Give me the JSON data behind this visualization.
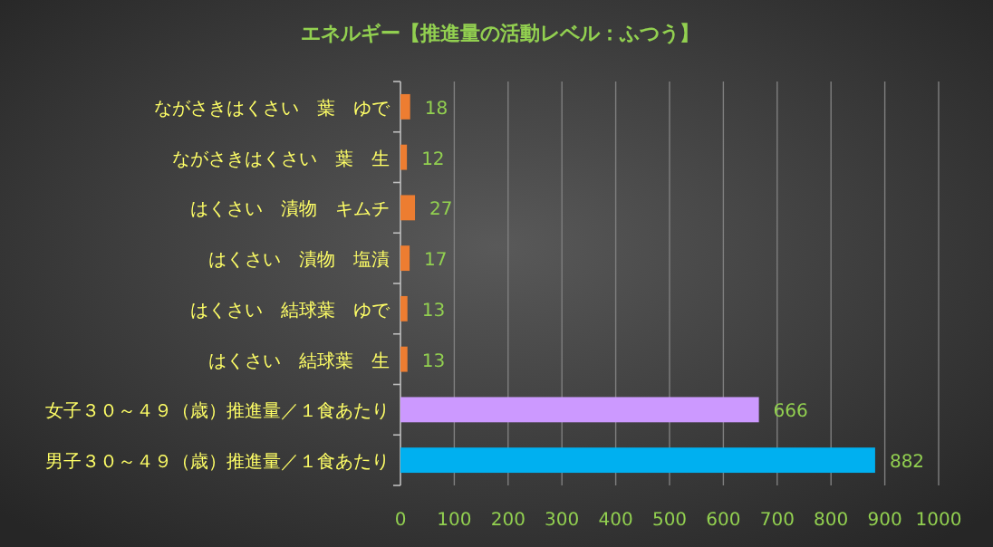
{
  "chart_data": {
    "type": "bar",
    "orientation": "horizontal",
    "title": "エネルギー【推進量の活動レベル：ふつう】",
    "categories": [
      "ながさきはくさい　葉　ゆで",
      "ながさきはくさい　葉　生",
      "はくさい　漬物　キムチ",
      "はくさい　漬物　塩漬",
      "はくさい　結球葉　ゆで",
      "はくさい　結球葉　生",
      "女子３０～４９（歳）推進量／１食あたり",
      "男子３０～４９（歳）推進量／１食あたり"
    ],
    "values": [
      18,
      12,
      27,
      17,
      13,
      13,
      666,
      882
    ],
    "colors": [
      "#ed7d31",
      "#ed7d31",
      "#ed7d31",
      "#ed7d31",
      "#ed7d31",
      "#ed7d31",
      "#cc99ff",
      "#00b0f0"
    ],
    "xlim": [
      0,
      1000
    ],
    "xticks": [
      0,
      100,
      200,
      300,
      400,
      500,
      600,
      700,
      800,
      900,
      1000
    ],
    "grid": "x",
    "data_labels": true
  }
}
